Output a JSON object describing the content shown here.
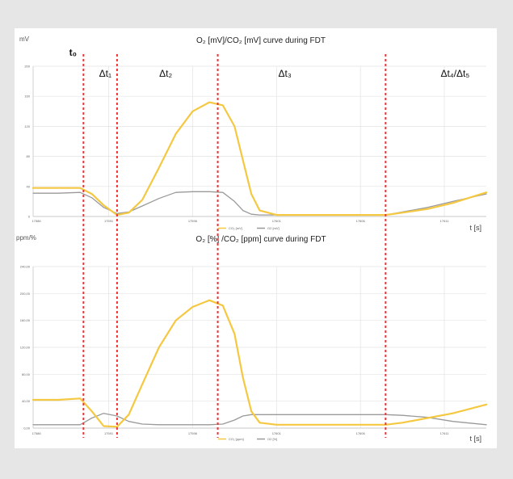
{
  "figure": {
    "t0_label": "t₀",
    "intervals": [
      {
        "label": "Δt₁",
        "x": 17590.8
      },
      {
        "label": "Δt₂",
        "x": 17594.4
      },
      {
        "label": "Δt₃",
        "x": 17601.5
      },
      {
        "label": "Δt₄/Δt₅",
        "x": 17612.5
      }
    ],
    "markers_x": [
      17589.5,
      17591.5,
      17597.5,
      17607.5
    ]
  },
  "chart_data": [
    {
      "type": "line",
      "title": "O₂ [mV]/CO₂ [mV] curve during FDT",
      "ylabel": "mV",
      "xlabel": "t [s]",
      "xlim": [
        17586.5,
        17613.5
      ],
      "ylim": [
        0,
        200
      ],
      "yticks": [
        0,
        40,
        80,
        120,
        160,
        200
      ],
      "ytick_labels": [
        "0",
        "40",
        "80",
        "120",
        "160",
        "200"
      ],
      "xticks": [
        17586,
        17591,
        17596,
        17601,
        17606,
        17611
      ],
      "xtick_labels": [
        "17586",
        "17591",
        "17596",
        "17601",
        "17606",
        "17611"
      ],
      "grid": true,
      "legend_position": "bottom",
      "series": [
        {
          "name": "CO₂ [mV]",
          "color": "#f5c842",
          "x": [
            17586.5,
            17588,
            17589.3,
            17590,
            17590.7,
            17591.5,
            17592.2,
            17593,
            17594,
            17595,
            17596,
            17597,
            17597.8,
            17598.5,
            17599,
            17599.5,
            17600,
            17601,
            17602,
            17604,
            17606,
            17607.5,
            17608.5,
            17610,
            17611.5,
            17613.5
          ],
          "values": [
            38,
            38,
            38,
            30,
            15,
            2,
            5,
            22,
            65,
            110,
            140,
            152,
            148,
            120,
            75,
            30,
            8,
            2,
            2,
            2,
            2,
            2,
            5,
            10,
            18,
            32
          ]
        },
        {
          "name": "O2 [mV]",
          "color": "#9a9a9a",
          "x": [
            17586.5,
            17588,
            17589.3,
            17590,
            17590.7,
            17591.5,
            17592.2,
            17593,
            17594,
            17595,
            17596,
            17597,
            17597.8,
            17598.5,
            17599,
            17599.5,
            17600,
            17601,
            17602,
            17604,
            17606,
            17607.5,
            17608.5,
            17610,
            17611.5,
            17613.5
          ],
          "values": [
            31,
            31,
            32,
            25,
            12,
            4,
            6,
            14,
            24,
            32,
            33,
            33,
            32,
            20,
            8,
            3,
            2,
            2,
            2,
            2,
            2,
            2,
            6,
            12,
            20,
            30
          ]
        }
      ]
    },
    {
      "type": "line",
      "title": "O₂ [%] /CO₂ [ppm] curve during FDT",
      "ylabel": "ppm/%",
      "xlabel": "t [s]",
      "xlim": [
        17586.5,
        17613.5
      ],
      "ylim": [
        0,
        240
      ],
      "yticks": [
        0,
        40,
        80,
        120,
        160,
        200,
        240
      ],
      "ytick_labels": [
        "0,00",
        "40,00",
        "80,00",
        "120,00",
        "160,00",
        "200,00",
        "240,00"
      ],
      "xticks": [
        17586,
        17591,
        17596,
        17601,
        17606,
        17611
      ],
      "xtick_labels": [
        "17586",
        "17591",
        "17596",
        "17601",
        "17606",
        "17611"
      ],
      "grid": true,
      "legend_position": "bottom",
      "series": [
        {
          "name": "CO₂ [ppm]",
          "color": "#f5c842",
          "x": [
            17586.5,
            17588,
            17589.3,
            17590,
            17590.7,
            17591.5,
            17592.2,
            17593,
            17594,
            17595,
            17596,
            17597,
            17597.8,
            17598.5,
            17599,
            17599.5,
            17600,
            17601,
            17602,
            17604,
            17606,
            17607.5,
            17608.5,
            17610,
            17611.5,
            17613.5
          ],
          "values": [
            42,
            42,
            44,
            25,
            3,
            2,
            20,
            65,
            120,
            160,
            180,
            190,
            182,
            140,
            75,
            25,
            8,
            5,
            5,
            5,
            5,
            5,
            8,
            15,
            22,
            35
          ]
        },
        {
          "name": "O2 [%]",
          "color": "#9a9a9a",
          "x": [
            17586.5,
            17588,
            17589.3,
            17590,
            17590.7,
            17591.5,
            17592.2,
            17593,
            17594,
            17595,
            17596,
            17597,
            17597.8,
            17598.5,
            17599,
            17599.5,
            17600,
            17601,
            17602,
            17604,
            17606,
            17607.5,
            17608.5,
            17610,
            17611.5,
            17613.5
          ],
          "values": [
            5,
            5,
            5,
            15,
            22,
            18,
            10,
            6,
            5,
            5,
            5,
            5,
            6,
            12,
            18,
            20,
            20,
            20,
            20,
            20,
            20,
            20,
            19,
            16,
            10,
            5
          ]
        }
      ]
    }
  ]
}
